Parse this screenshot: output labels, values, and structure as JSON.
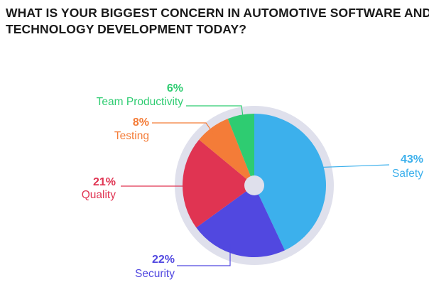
{
  "title_lines": [
    "WHAT IS YOUR BIGGEST CONCERN IN AUTOMOTIVE SOFTWARE AND",
    "TECHNOLOGY DEVELOPMENT TODAY?"
  ],
  "colors": {
    "ring": "#dfe0ec",
    "hole": "#dfe0ec",
    "leader": "#444444"
  },
  "chart_data": {
    "type": "pie",
    "title": "WHAT IS YOUR BIGGEST CONCERN IN AUTOMOTIVE SOFTWARE AND TECHNOLOGY DEVELOPMENT TODAY?",
    "categories": [
      "Safety",
      "Security",
      "Quality",
      "Testing",
      "Team Productivity"
    ],
    "values": [
      43,
      22,
      21,
      8,
      6
    ],
    "value_labels": [
      "43%",
      "22%",
      "21%",
      "8%",
      "6%"
    ],
    "colors": [
      "#3cb0ec",
      "#5148e0",
      "#e03452",
      "#f47c38",
      "#2ecc71"
    ],
    "legend": "none"
  }
}
